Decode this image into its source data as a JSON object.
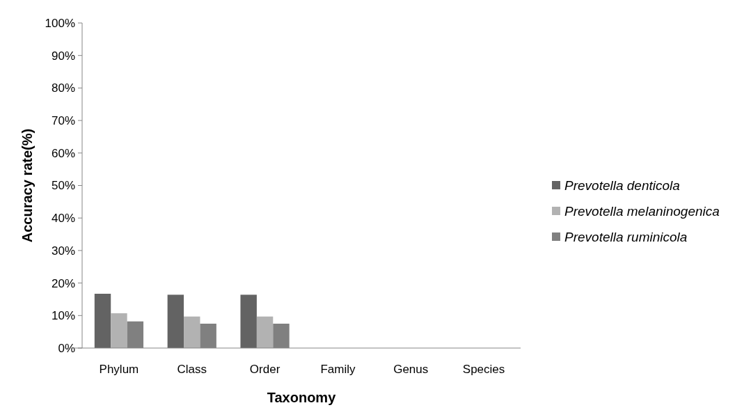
{
  "chart_data": {
    "type": "bar",
    "xlabel": "Taxonomy",
    "ylabel": "Accuracy rate(%)",
    "categories": [
      "Phylum",
      "Class",
      "Order",
      "Family",
      "Genus",
      "Species"
    ],
    "series": [
      {
        "name": "Prevotella denticola",
        "color": "#636363",
        "values": [
          16.7,
          16.4,
          16.4,
          0,
          0,
          0
        ]
      },
      {
        "name": "Prevotella melaninogenica",
        "color": "#b2b2b2",
        "values": [
          10.7,
          9.7,
          9.7,
          0,
          0,
          0
        ]
      },
      {
        "name": "Prevotella ruminicola",
        "color": "#808080",
        "values": [
          8.2,
          7.5,
          7.5,
          0,
          0,
          0
        ]
      }
    ],
    "ylim": [
      0,
      100
    ],
    "yticks": [
      {
        "value": 0,
        "label": "0%"
      },
      {
        "value": 10,
        "label": "10%"
      },
      {
        "value": 20,
        "label": "20%"
      },
      {
        "value": 30,
        "label": "30%"
      },
      {
        "value": 40,
        "label": "40%"
      },
      {
        "value": 50,
        "label": "50%"
      },
      {
        "value": 60,
        "label": "60%"
      },
      {
        "value": 70,
        "label": "70%"
      },
      {
        "value": 80,
        "label": "80%"
      },
      {
        "value": 90,
        "label": "90%"
      },
      {
        "value": 100,
        "label": "100%"
      }
    ],
    "grid": false,
    "legend": "right"
  }
}
